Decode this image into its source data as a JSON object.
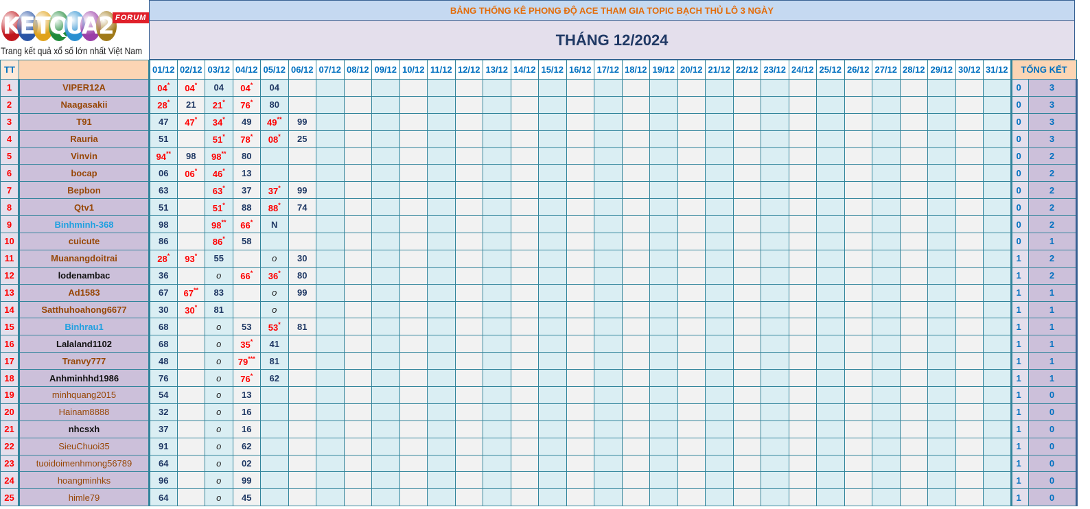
{
  "logo": {
    "text": "KETQUA2",
    "badge": "FORUM",
    "slogan": "Trang kết quả xổ số lớn nhất Việt Nam"
  },
  "title": "BẢNG THỐNG KÊ PHONG ĐỘ ACE THAM GIA TOPIC BẠCH THỦ LÔ 3 NGÀY",
  "month": "THÁNG 12/2024",
  "headers": {
    "tt": "TT",
    "name": "",
    "summary": "TỔNG KẾT"
  },
  "dates": [
    "01/12",
    "02/12",
    "03/12",
    "04/12",
    "05/12",
    "06/12",
    "07/12",
    "08/12",
    "09/12",
    "10/12",
    "11/12",
    "12/12",
    "13/12",
    "14/12",
    "15/12",
    "16/12",
    "17/12",
    "18/12",
    "19/12",
    "20/12",
    "21/12",
    "22/12",
    "23/12",
    "24/12",
    "25/12",
    "26/12",
    "27/12",
    "28/12",
    "29/12",
    "30/12",
    "31/12"
  ],
  "colors": {
    "brown": "#974706",
    "blue": "#1fa0e0",
    "black": "#111111",
    "hit": "#ff0000",
    "border": "#31849b"
  },
  "rows": [
    {
      "tt": "1",
      "name": "VIPER12A",
      "color": "brown",
      "cells": [
        "04*",
        "04*",
        "04",
        "04*",
        "04",
        ""
      ],
      "a": "0",
      "b": "3"
    },
    {
      "tt": "2",
      "name": "Naagasakii",
      "color": "brown",
      "cells": [
        "28*",
        "21",
        "21*",
        "76*",
        "80"
      ],
      "a": "0",
      "b": "3"
    },
    {
      "tt": "3",
      "name": "T91",
      "color": "brown",
      "cells": [
        "47",
        "47*",
        "34*",
        "49",
        "49**",
        "99"
      ],
      "a": "0",
      "b": "3"
    },
    {
      "tt": "4",
      "name": "Rauria",
      "color": "brown",
      "cells": [
        "51",
        "",
        "51*",
        "78*",
        "08*",
        "25"
      ],
      "a": "0",
      "b": "3"
    },
    {
      "tt": "5",
      "name": "Vinvin",
      "color": "brown",
      "cells": [
        "94**",
        "98",
        "98**",
        "80"
      ],
      "a": "0",
      "b": "2"
    },
    {
      "tt": "6",
      "name": "bocap",
      "color": "brown",
      "cells": [
        "06",
        "06*",
        "46*",
        "13"
      ],
      "a": "0",
      "b": "2"
    },
    {
      "tt": "7",
      "name": "Bepbon",
      "color": "brown",
      "cells": [
        "63",
        "",
        "63*",
        "37",
        "37*",
        "99"
      ],
      "a": "0",
      "b": "2"
    },
    {
      "tt": "8",
      "name": "Qtv1",
      "color": "brown",
      "cells": [
        "51",
        "",
        "51*",
        "88",
        "88*",
        "74"
      ],
      "a": "0",
      "b": "2"
    },
    {
      "tt": "9",
      "name": "Binhminh-368",
      "color": "blue",
      "cells": [
        "98",
        "",
        "98**",
        "66*",
        "N"
      ],
      "a": "0",
      "b": "2"
    },
    {
      "tt": "10",
      "name": "cuicute",
      "color": "brown",
      "cells": [
        "86",
        "",
        "86*",
        "58"
      ],
      "a": "0",
      "b": "1"
    },
    {
      "tt": "11",
      "name": "Muanangdoitrai",
      "color": "brown",
      "cells": [
        "28*",
        "93*",
        "55",
        "",
        "o",
        "30"
      ],
      "a": "1",
      "b": "2"
    },
    {
      "tt": "12",
      "name": "lodenambac",
      "color": "black",
      "cells": [
        "36",
        "",
        "o",
        "66*",
        "36*",
        "80"
      ],
      "a": "1",
      "b": "2"
    },
    {
      "tt": "13",
      "name": "Ad1583",
      "color": "brown",
      "cells": [
        "67",
        "67**",
        "83",
        "",
        "o",
        "99"
      ],
      "a": "1",
      "b": "1"
    },
    {
      "tt": "14",
      "name": "Satthuhoahong6677",
      "color": "brown",
      "cells": [
        "30",
        "30*",
        "81",
        "",
        "o"
      ],
      "a": "1",
      "b": "1"
    },
    {
      "tt": "15",
      "name": "Binhrau1",
      "color": "blue",
      "cells": [
        "68",
        "",
        "o",
        "53",
        "53*",
        "81"
      ],
      "a": "1",
      "b": "1"
    },
    {
      "tt": "16",
      "name": "Lalaland1102",
      "color": "black",
      "cells": [
        "68",
        "",
        "o",
        "35*",
        "41"
      ],
      "a": "1",
      "b": "1"
    },
    {
      "tt": "17",
      "name": "Tranvy777",
      "color": "brown",
      "cells": [
        "48",
        "",
        "o",
        "79***",
        "81"
      ],
      "a": "1",
      "b": "1"
    },
    {
      "tt": "18",
      "name": "Anhminhhd1986",
      "color": "black",
      "cells": [
        "76",
        "",
        "o",
        "76*",
        "62"
      ],
      "a": "1",
      "b": "1"
    },
    {
      "tt": "19",
      "name": "minhquang2015",
      "color": "brown",
      "cells": [
        "54",
        "",
        "o",
        "13"
      ],
      "a": "1",
      "b": "0"
    },
    {
      "tt": "20",
      "name": "Hainam8888",
      "color": "brown",
      "cells": [
        "32",
        "",
        "o",
        "16"
      ],
      "a": "1",
      "b": "0"
    },
    {
      "tt": "21",
      "name": "nhcsxh",
      "color": "black",
      "cells": [
        "37",
        "",
        "o",
        "16"
      ],
      "a": "1",
      "b": "0"
    },
    {
      "tt": "22",
      "name": "SieuChuoi35",
      "color": "brown",
      "cells": [
        "91",
        "",
        "o",
        "62"
      ],
      "a": "1",
      "b": "0"
    },
    {
      "tt": "23",
      "name": "tuoidoimenhmong56789",
      "color": "brown",
      "cells": [
        "64",
        "",
        "o",
        "02"
      ],
      "a": "1",
      "b": "0"
    },
    {
      "tt": "24",
      "name": "hoangminhks",
      "color": "brown",
      "cells": [
        "96",
        "",
        "o",
        "99"
      ],
      "a": "1",
      "b": "0"
    },
    {
      "tt": "25",
      "name": "himle79",
      "color": "brown",
      "cells": [
        "64",
        "",
        "o",
        "45"
      ],
      "a": "1",
      "b": "0"
    }
  ]
}
